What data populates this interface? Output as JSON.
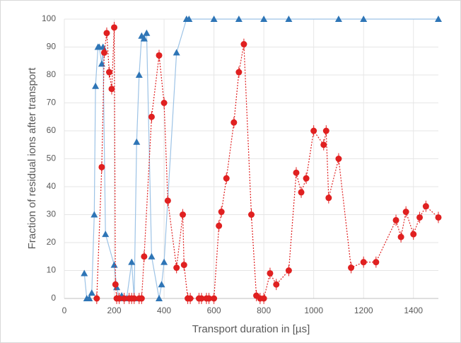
{
  "chart_data": {
    "type": "scatter",
    "x_label": "Transport duration in [µs]",
    "y_label": "Fraction of residual ions after transport",
    "xlim": [
      0,
      1500
    ],
    "xticks": [
      0,
      200,
      400,
      600,
      800,
      1000,
      1200,
      1400
    ],
    "ylim": [
      0,
      100
    ],
    "yticks": [
      0,
      10,
      20,
      30,
      40,
      50,
      60,
      70,
      80,
      90,
      100
    ],
    "grid": true,
    "series": [
      {
        "color": "#2e75b6",
        "line_color": "#9dc3e6",
        "marker": "triangle",
        "line_style": "solid",
        "x": [
          80,
          90,
          100,
          110,
          120,
          125,
          135,
          140,
          150,
          155,
          165,
          200,
          210,
          220,
          230,
          250,
          270,
          280,
          290,
          300,
          310,
          320,
          330,
          350,
          380,
          390,
          400,
          450,
          490,
          500,
          600,
          700,
          800,
          900,
          1100,
          1200,
          1500
        ],
        "values": [
          9,
          0,
          0,
          2,
          30,
          76,
          90,
          90,
          84,
          90,
          23,
          12,
          4,
          0,
          1,
          0,
          13,
          0,
          56,
          80,
          94,
          93,
          95,
          15,
          0,
          5,
          13,
          88,
          100,
          100,
          100,
          100,
          100,
          100,
          100,
          100,
          100
        ],
        "errors": [
          1,
          1,
          1,
          1,
          1,
          1,
          1,
          1,
          1,
          1,
          1,
          1,
          1,
          1,
          1,
          1,
          1,
          1,
          1,
          1,
          1,
          1,
          1,
          1,
          1,
          1,
          1,
          1,
          1,
          1,
          1,
          1,
          1,
          1,
          1,
          1,
          1
        ]
      },
      {
        "color": "#e02020",
        "line_color": "#e02020",
        "marker": "circle",
        "line_style": "dotted",
        "x": [
          130,
          150,
          160,
          170,
          180,
          190,
          200,
          205,
          210,
          220,
          240,
          260,
          270,
          280,
          300,
          310,
          320,
          350,
          380,
          400,
          415,
          450,
          475,
          480,
          495,
          505,
          540,
          550,
          570,
          580,
          600,
          620,
          630,
          650,
          680,
          700,
          720,
          750,
          770,
          785,
          800,
          825,
          850,
          900,
          930,
          950,
          970,
          1000,
          1040,
          1050,
          1060,
          1100,
          1150,
          1200,
          1250,
          1330,
          1350,
          1370,
          1400,
          1425,
          1450,
          1500
        ],
        "values": [
          0,
          47,
          88,
          95,
          81,
          75,
          97,
          5,
          0,
          0,
          0,
          0,
          0,
          0,
          0,
          0,
          15,
          65,
          87,
          70,
          35,
          11,
          30,
          12,
          0,
          0,
          0,
          0,
          0,
          0,
          0,
          26,
          31,
          43,
          63,
          81,
          91,
          30,
          1,
          0,
          0,
          9,
          5,
          10,
          45,
          38,
          43,
          60,
          55,
          60,
          36,
          50,
          11,
          13,
          13,
          28,
          22,
          31,
          23,
          29,
          33,
          29
        ],
        "errors": [
          2,
          2,
          2,
          2,
          2,
          2,
          2,
          2,
          2,
          2,
          2,
          2,
          2,
          2,
          2,
          2,
          2,
          2,
          2,
          2,
          2,
          2,
          2,
          2,
          2,
          2,
          2,
          2,
          2,
          2,
          2,
          2,
          2,
          2,
          2,
          2,
          2,
          2,
          2,
          2,
          2,
          2,
          2,
          2,
          2,
          2,
          2,
          2,
          2,
          2,
          2,
          2,
          2,
          2,
          2,
          2,
          2,
          2,
          2,
          2,
          2,
          2
        ]
      }
    ]
  }
}
